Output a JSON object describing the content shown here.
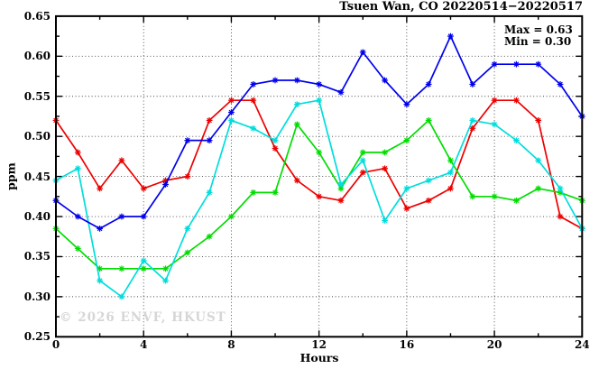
{
  "title": "Tsuen Wan, CO 20220514−20220517",
  "watermark": "© 2026 ENVF, HKUST",
  "annotation": {
    "max_label": "Max = 0.63",
    "min_label": "Min = 0.30"
  },
  "chart_data": {
    "type": "line",
    "title": "Tsuen Wan, CO 20220514−20220517",
    "xlabel": "Hours",
    "ylabel": "ppm",
    "xlim": [
      0,
      24
    ],
    "ylim": [
      0.25,
      0.65
    ],
    "grid": true,
    "grid_style": "dotted",
    "legend": "none",
    "marker": "asterisk",
    "x_tick_values": [
      0,
      4,
      8,
      12,
      16,
      20,
      24
    ],
    "x_tick_labels": [
      "0",
      "4",
      "8",
      "12",
      "16",
      "20",
      "24"
    ],
    "x_minor_ticks": [
      2,
      6,
      10,
      14,
      18,
      22
    ],
    "y_tick_values": [
      0.25,
      0.3,
      0.35,
      0.4,
      0.45,
      0.5,
      0.55,
      0.6,
      0.65
    ],
    "y_tick_labels": [
      "0.25",
      "0.30",
      "0.35",
      "0.40",
      "0.45",
      "0.50",
      "0.55",
      "0.60",
      "0.65"
    ],
    "y_minor_ticks": [
      0.275,
      0.325,
      0.375,
      0.425,
      0.475,
      0.525,
      0.575,
      0.625
    ],
    "x": [
      0,
      1,
      2,
      3,
      4,
      5,
      6,
      7,
      8,
      9,
      10,
      11,
      12,
      13,
      14,
      15,
      16,
      17,
      18,
      19,
      20,
      21,
      22,
      23,
      24
    ],
    "series": [
      {
        "name": "red",
        "color": "#ee0000",
        "values": [
          0.52,
          0.48,
          0.435,
          0.47,
          0.435,
          0.445,
          0.45,
          0.52,
          0.545,
          0.545,
          0.485,
          0.445,
          0.425,
          0.42,
          0.455,
          0.46,
          0.41,
          0.42,
          0.435,
          0.51,
          0.545,
          0.545,
          0.52,
          0.4,
          0.385
        ]
      },
      {
        "name": "green",
        "color": "#00dd00",
        "values": [
          0.385,
          0.36,
          0.335,
          0.335,
          0.335,
          0.335,
          0.355,
          0.375,
          0.4,
          0.43,
          0.43,
          0.515,
          0.48,
          0.435,
          0.48,
          0.48,
          0.495,
          0.52,
          0.47,
          0.425,
          0.425,
          0.42,
          0.435,
          0.43,
          0.42
        ]
      },
      {
        "name": "cyan",
        "color": "#00dddd",
        "values": [
          0.445,
          0.46,
          0.32,
          0.3,
          0.345,
          0.32,
          0.385,
          0.43,
          0.52,
          0.51,
          0.495,
          0.54,
          0.545,
          0.44,
          0.47,
          0.395,
          0.435,
          0.445,
          0.455,
          0.52,
          0.515,
          0.495,
          0.47,
          0.435,
          0.385
        ]
      },
      {
        "name": "blue",
        "color": "#0000ee",
        "values": [
          0.42,
          0.4,
          0.385,
          0.4,
          0.4,
          0.44,
          0.495,
          0.495,
          0.53,
          0.565,
          0.57,
          0.57,
          0.565,
          0.555,
          0.605,
          0.57,
          0.54,
          0.565,
          0.625,
          0.565,
          0.59,
          0.59,
          0.59,
          0.565,
          0.525
        ]
      }
    ]
  }
}
